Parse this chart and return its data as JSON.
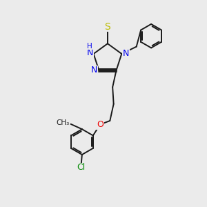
{
  "bg_color": "#ebebeb",
  "bond_color": "#1a1a1a",
  "atom_colors": {
    "N": "#0000ee",
    "S": "#bbbb00",
    "O": "#ee0000",
    "Cl": "#008800",
    "C": "#1a1a1a",
    "H": "#0000ee"
  },
  "lw": 1.4,
  "fs": 8.5
}
